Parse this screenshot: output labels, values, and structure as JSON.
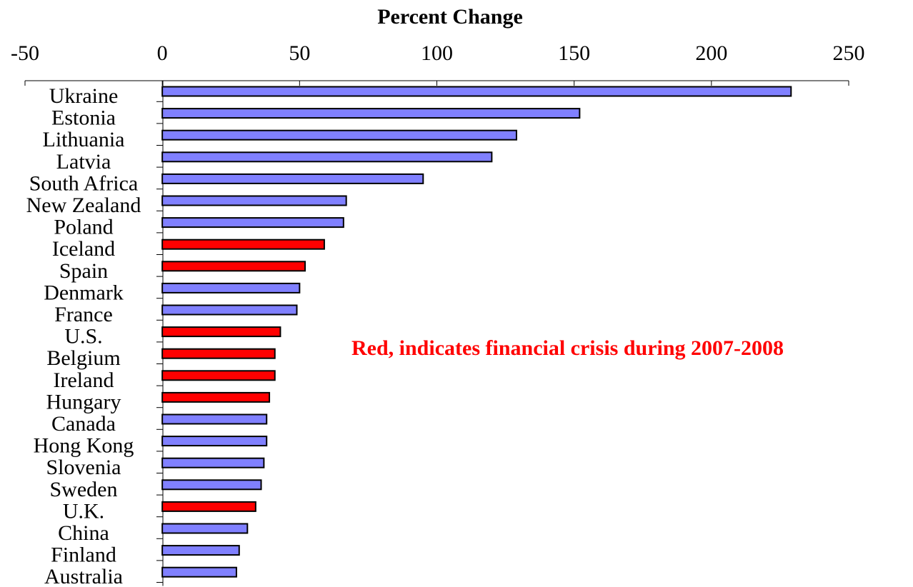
{
  "chart_data": {
    "type": "bar",
    "orientation": "horizontal",
    "title": "",
    "xlabel": "Percent Change",
    "ylabel": "",
    "xlim": [
      -50,
      250
    ],
    "xticks": [
      -50,
      0,
      50,
      100,
      150,
      200,
      250
    ],
    "xtick_labels": [
      "-50",
      "0",
      "50",
      "100",
      "150",
      "200",
      "250"
    ],
    "axis_position": "top",
    "grid": false,
    "legend": "none",
    "categories": [
      "Ukraine",
      "Estonia",
      "Lithuania",
      "Latvia",
      "South Africa",
      "New Zealand",
      "Poland",
      "Iceland",
      "Spain",
      "Denmark",
      "France",
      "U.S.",
      "Belgium",
      "Ireland",
      "Hungary",
      "Canada",
      "Hong Kong",
      "Slovenia",
      "Sweden",
      "U.K.",
      "China",
      "Finland",
      "Australia"
    ],
    "values": [
      229,
      152,
      129,
      120,
      95,
      67,
      66,
      59,
      52,
      50,
      49,
      43,
      41,
      41,
      39,
      38,
      38,
      37,
      36,
      34,
      31,
      28,
      27
    ],
    "financial_crisis": [
      false,
      false,
      false,
      false,
      false,
      false,
      false,
      true,
      true,
      false,
      false,
      true,
      true,
      true,
      true,
      false,
      false,
      false,
      false,
      true,
      false,
      false,
      false
    ],
    "colors": {
      "normal": "#8080ff",
      "crisis": "#ff0000",
      "outline": "#000000",
      "annotation": "#ff0000"
    },
    "annotation": "Red, indicates financial crisis during 2007-2008"
  }
}
